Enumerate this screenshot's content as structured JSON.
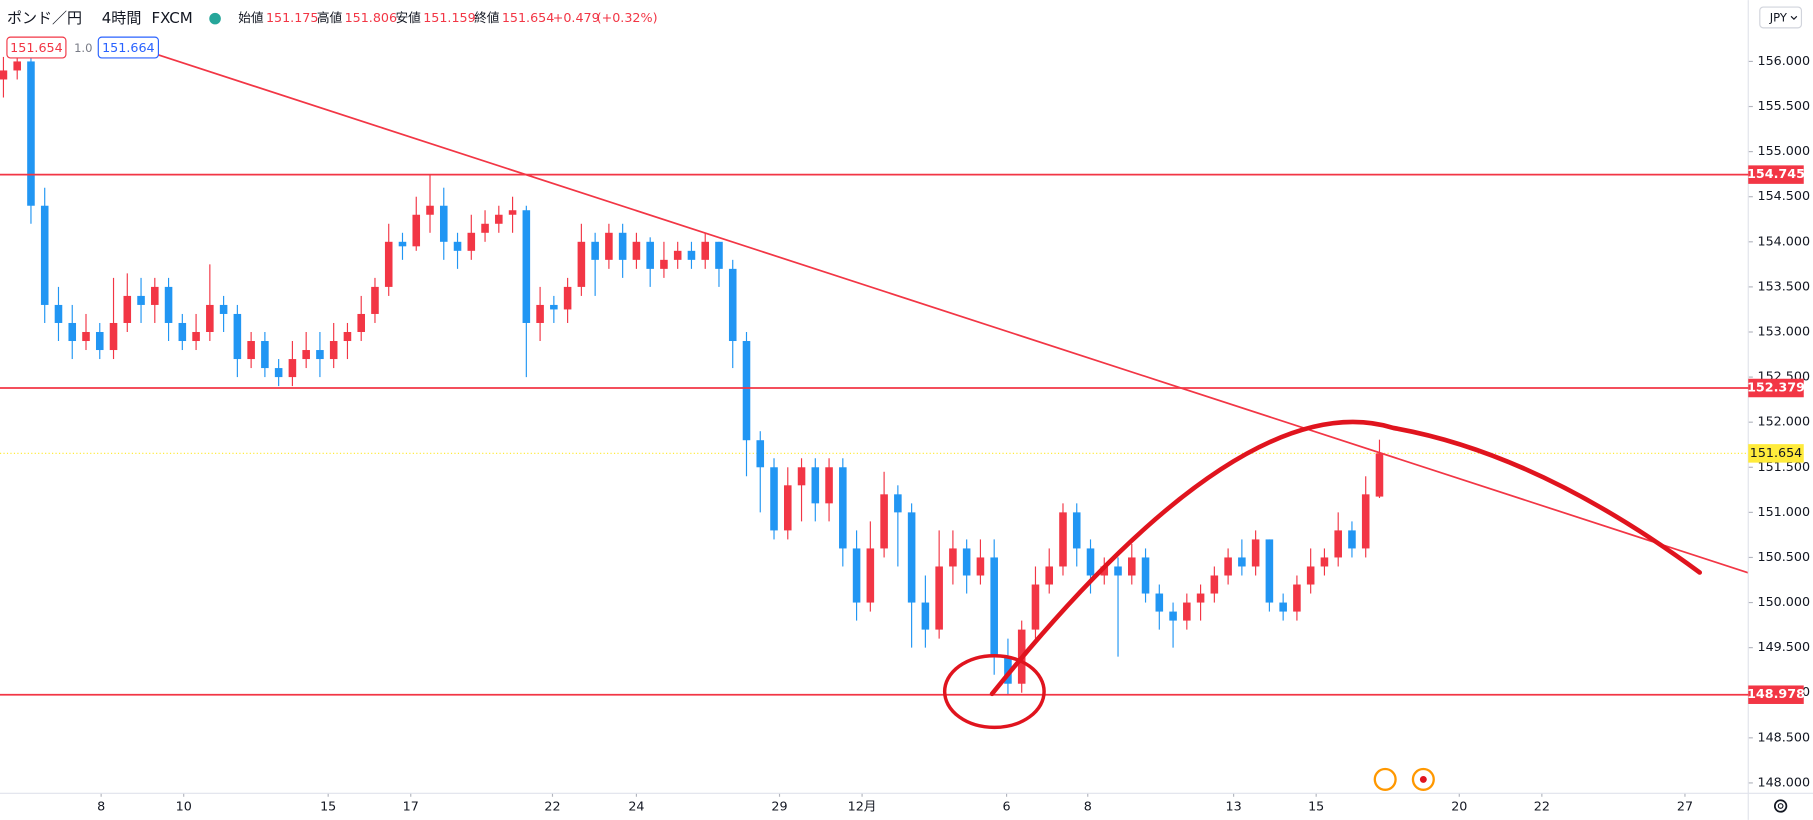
{
  "header": {
    "symbol": "ポンド／円",
    "interval": "4時間",
    "source": "FXCM",
    "open_label": "始値",
    "open": 151.175,
    "high_label": "高値",
    "high": 151.806,
    "low_label": "安値",
    "low": 151.159,
    "close_label": "終値",
    "close": 151.654,
    "change": "+0.479",
    "change_pct": "(+0.32%)",
    "sell": "151.654",
    "spread": "1.0",
    "buy": "151.664",
    "currency": "JPY"
  },
  "chart_data": {
    "type": "candlestick",
    "up_color": "#f23645",
    "down_color": "#2196f3",
    "open": [
      155.8,
      155.9,
      156.0,
      154.4,
      153.3,
      153.1,
      152.9,
      153.0,
      152.8,
      153.1,
      153.4,
      153.3,
      153.5,
      153.1,
      152.9,
      153.0,
      153.3,
      153.2,
      152.7,
      152.9,
      152.6,
      152.5,
      152.7,
      152.8,
      152.7,
      152.9,
      153.0,
      153.2,
      153.5,
      154.0,
      153.95,
      154.3,
      154.4,
      154.0,
      153.9,
      154.1,
      154.2,
      154.3,
      154.35,
      153.1,
      153.3,
      153.25,
      153.5,
      154.0,
      153.8,
      154.1,
      153.8,
      154.0,
      153.7,
      153.8,
      153.9,
      153.8,
      154.0,
      153.7,
      152.9,
      151.8,
      151.5,
      150.8,
      151.3,
      151.5,
      151.1,
      151.5,
      150.6,
      150.0,
      150.6,
      151.2,
      151.0,
      150.0,
      149.7,
      150.4,
      150.6,
      150.3,
      150.5,
      149.4,
      149.1,
      149.7,
      150.2,
      150.4,
      151.0,
      150.6,
      150.3,
      150.4,
      150.3,
      150.5,
      150.1,
      149.9,
      149.8,
      150.0,
      150.1,
      150.3,
      150.5,
      150.4,
      150.7,
      150.0,
      149.9,
      150.2,
      150.4,
      150.5,
      150.8,
      150.6,
      151.175
    ],
    "high": [
      156.05,
      156.1,
      156.05,
      154.6,
      153.5,
      153.3,
      153.2,
      153.1,
      153.6,
      153.65,
      153.6,
      153.6,
      153.6,
      153.2,
      153.2,
      153.75,
      153.4,
      153.3,
      153.0,
      153.0,
      152.7,
      152.9,
      153.0,
      153.0,
      153.1,
      153.1,
      153.4,
      153.6,
      154.2,
      154.1,
      154.5,
      154.75,
      154.6,
      154.1,
      154.3,
      154.35,
      154.4,
      154.5,
      154.4,
      153.5,
      153.4,
      153.6,
      154.2,
      154.1,
      154.2,
      154.2,
      154.1,
      154.05,
      154.0,
      154.0,
      154.0,
      154.1,
      154.0,
      153.8,
      153.0,
      151.9,
      151.6,
      151.5,
      151.6,
      151.6,
      151.6,
      151.6,
      150.8,
      150.9,
      151.45,
      151.3,
      151.1,
      150.3,
      150.8,
      150.8,
      150.7,
      150.7,
      150.7,
      149.6,
      149.8,
      150.4,
      150.6,
      151.1,
      151.1,
      150.7,
      150.5,
      150.5,
      150.65,
      150.6,
      150.2,
      150.0,
      150.1,
      150.2,
      150.4,
      150.6,
      150.7,
      150.8,
      150.7,
      150.1,
      150.3,
      150.6,
      150.6,
      151.0,
      150.9,
      151.4,
      151.806
    ],
    "low": [
      155.6,
      155.8,
      154.2,
      153.1,
      152.9,
      152.7,
      152.8,
      152.7,
      152.7,
      153.0,
      153.1,
      153.1,
      152.9,
      152.8,
      152.8,
      152.9,
      153.0,
      152.5,
      152.6,
      152.5,
      152.4,
      152.4,
      152.6,
      152.5,
      152.6,
      152.7,
      152.9,
      153.1,
      153.4,
      153.8,
      153.9,
      154.1,
      153.8,
      153.7,
      153.8,
      154.0,
      154.1,
      154.1,
      152.5,
      152.9,
      153.1,
      153.1,
      153.4,
      153.4,
      153.7,
      153.6,
      153.7,
      153.5,
      153.6,
      153.7,
      153.7,
      153.7,
      153.5,
      152.6,
      151.4,
      151.0,
      150.7,
      150.7,
      150.9,
      150.9,
      150.9,
      150.4,
      149.8,
      149.9,
      150.5,
      150.4,
      149.5,
      149.5,
      149.6,
      150.2,
      150.1,
      150.2,
      149.2,
      148.978,
      149.0,
      149.6,
      150.1,
      150.3,
      150.4,
      150.1,
      150.2,
      149.4,
      150.2,
      150.0,
      149.7,
      149.5,
      149.7,
      149.8,
      150.0,
      150.2,
      150.3,
      150.3,
      149.9,
      149.8,
      149.8,
      150.1,
      150.3,
      150.4,
      150.5,
      150.5,
      151.159
    ],
    "close": [
      155.9,
      156.0,
      154.4,
      153.3,
      153.1,
      152.9,
      153.0,
      152.8,
      153.1,
      153.4,
      153.3,
      153.5,
      153.1,
      152.9,
      153.0,
      153.3,
      153.2,
      152.7,
      152.9,
      152.6,
      152.5,
      152.7,
      152.8,
      152.7,
      152.9,
      153.0,
      153.2,
      153.5,
      154.0,
      153.95,
      154.3,
      154.4,
      154.0,
      153.9,
      154.1,
      154.2,
      154.3,
      154.35,
      153.1,
      153.3,
      153.25,
      153.5,
      154.0,
      153.8,
      154.1,
      153.8,
      154.0,
      153.7,
      153.8,
      153.9,
      153.8,
      154.0,
      153.7,
      152.9,
      151.8,
      151.5,
      150.8,
      151.3,
      151.5,
      151.1,
      151.5,
      150.6,
      150.0,
      150.6,
      151.2,
      151.0,
      150.0,
      149.7,
      150.4,
      150.6,
      150.3,
      150.5,
      149.4,
      149.1,
      149.7,
      150.2,
      150.4,
      151.0,
      150.6,
      150.3,
      150.4,
      150.3,
      150.5,
      150.1,
      149.9,
      149.8,
      150.0,
      150.1,
      150.3,
      150.5,
      150.4,
      150.7,
      150.0,
      149.9,
      150.2,
      150.4,
      150.5,
      150.8,
      150.6,
      151.2,
      151.654
    ],
    "xlim": [
      -0.25,
      126.8
    ],
    "xticks": [
      {
        "value": 7.1,
        "label": "8"
      },
      {
        "value": 13.1,
        "label": "10"
      },
      {
        "value": 23.6,
        "label": "15"
      },
      {
        "value": 29.6,
        "label": "17"
      },
      {
        "value": 39.9,
        "label": "22"
      },
      {
        "value": 46.0,
        "label": "24"
      },
      {
        "value": 56.4,
        "label": "29"
      },
      {
        "value": 62.4,
        "label": "12月"
      },
      {
        "value": 72.9,
        "label": "6"
      },
      {
        "value": 78.8,
        "label": "8"
      },
      {
        "value": 89.4,
        "label": "13"
      },
      {
        "value": 95.4,
        "label": "15"
      },
      {
        "value": 105.8,
        "label": "20"
      },
      {
        "value": 111.8,
        "label": "22"
      },
      {
        "value": 122.2,
        "label": "27"
      }
    ],
    "ylim": [
      147.885,
      156.68
    ],
    "yticks": [
      {
        "value": 148,
        "label": "148.000"
      },
      {
        "value": 148.5,
        "label": "148.500"
      },
      {
        "value": 149,
        "label": "149.000"
      },
      {
        "value": 149.5,
        "label": "149.500"
      },
      {
        "value": 150,
        "label": "150.000"
      },
      {
        "value": 150.5,
        "label": "150.500"
      },
      {
        "value": 151,
        "label": "151.000"
      },
      {
        "value": 151.5,
        "label": "151.500"
      },
      {
        "value": 152,
        "label": "152.000"
      },
      {
        "value": 152.5,
        "label": "152.500"
      },
      {
        "value": 153,
        "label": "153.000"
      },
      {
        "value": 153.5,
        "label": "153.500"
      },
      {
        "value": 154,
        "label": "154.000"
      },
      {
        "value": 154.5,
        "label": "154.500"
      },
      {
        "value": 155,
        "label": "155.000"
      },
      {
        "value": 155.5,
        "label": "155.500"
      },
      {
        "value": 156,
        "label": "156.000"
      }
    ],
    "grid": false,
    "levels": [
      154.745,
      152.379,
      148.978
    ],
    "level_color": "#f23645",
    "last_price": 151.654,
    "last_color": "#ffeb3b",
    "trendline": {
      "x": [
        11.1,
        126.8
      ],
      "y": [
        156.08,
        150.33
      ]
    }
  }
}
